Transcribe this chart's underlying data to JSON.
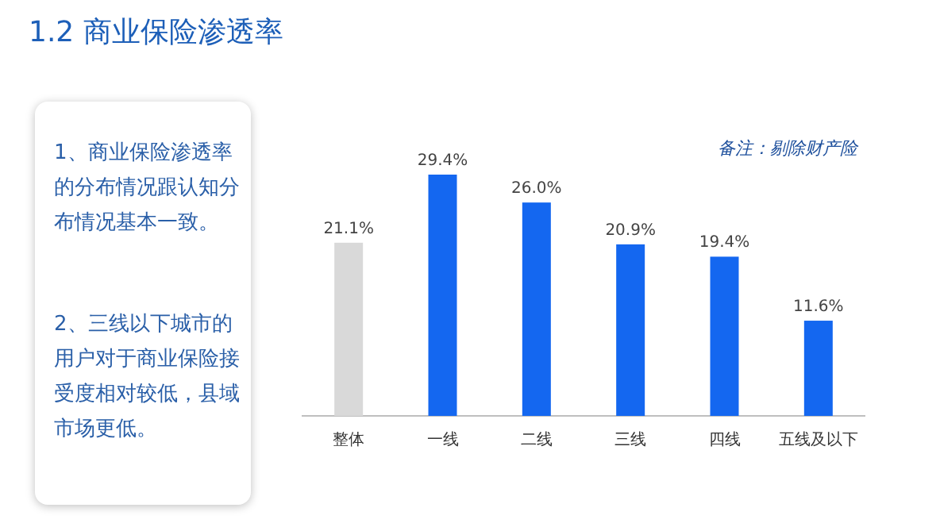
{
  "chart_data": {
    "type": "bar",
    "title": "1.2  商业保险渗透率",
    "categories": [
      "整体",
      "一线",
      "二线",
      "三线",
      "四线",
      "五线及以下"
    ],
    "values": [
      21.1,
      29.4,
      26.0,
      20.9,
      19.4,
      11.6
    ],
    "colors": [
      "#d9d9d9",
      "#1467f0",
      "#1467f0",
      "#1467f0",
      "#1467f0",
      "#1467f0"
    ],
    "value_labels": [
      "21.1%",
      "29.4%",
      "26.0%",
      "20.9%",
      "19.4%",
      "11.6%"
    ],
    "annotations": [
      "备注：剔除财产险",
      "1、商业保险渗透率的分布情况跟认知分布情况基本一致。",
      "2、三线以下城市的用户对于商业保险接受度相对较低，县域市场更低。"
    ]
  }
}
